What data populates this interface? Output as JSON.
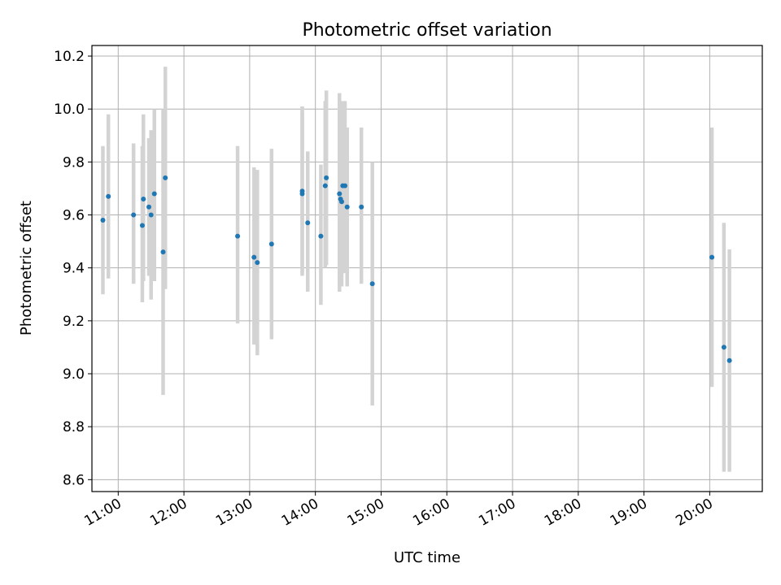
{
  "chart_data": {
    "type": "scatter",
    "title": "Photometric offset variation",
    "xlabel": "UTC time",
    "ylabel": "Photometric offset",
    "x_scale": "time",
    "xlim": [
      "10:36",
      "20:48"
    ],
    "ylim": [
      8.555,
      10.24
    ],
    "x_ticks": [
      "11:00",
      "12:00",
      "13:00",
      "14:00",
      "15:00",
      "16:00",
      "17:00",
      "18:00",
      "19:00",
      "20:00"
    ],
    "y_ticks": [
      "8.6",
      "8.8",
      "9.0",
      "9.2",
      "9.4",
      "9.6",
      "9.8",
      "10.0",
      "10.2"
    ],
    "grid": true,
    "marker_color": "#1f77b4",
    "errorbar_color": "#d3d3d3",
    "points": [
      {
        "x": "10:46",
        "y": 9.58,
        "ylow": 9.3,
        "yhigh": 9.86
      },
      {
        "x": "10:51",
        "y": 9.67,
        "ylow": 9.36,
        "yhigh": 9.98
      },
      {
        "x": "11:14",
        "y": 9.6,
        "ylow": 9.34,
        "yhigh": 9.87
      },
      {
        "x": "11:22",
        "y": 9.56,
        "ylow": 9.27,
        "yhigh": 9.86
      },
      {
        "x": "11:23",
        "y": 9.66,
        "ylow": 9.35,
        "yhigh": 9.98
      },
      {
        "x": "11:28",
        "y": 9.63,
        "ylow": 9.37,
        "yhigh": 9.89
      },
      {
        "x": "11:30",
        "y": 9.6,
        "ylow": 9.28,
        "yhigh": 9.92
      },
      {
        "x": "11:33",
        "y": 9.68,
        "ylow": 9.35,
        "yhigh": 10.0
      },
      {
        "x": "11:41",
        "y": 9.46,
        "ylow": 8.92,
        "yhigh": 10.0
      },
      {
        "x": "11:43",
        "y": 9.74,
        "ylow": 9.32,
        "yhigh": 10.16
      },
      {
        "x": "12:49",
        "y": 9.52,
        "ylow": 9.19,
        "yhigh": 9.86
      },
      {
        "x": "13:04",
        "y": 9.44,
        "ylow": 9.11,
        "yhigh": 9.78
      },
      {
        "x": "13:07",
        "y": 9.42,
        "ylow": 9.07,
        "yhigh": 9.77
      },
      {
        "x": "13:20",
        "y": 9.49,
        "ylow": 9.13,
        "yhigh": 9.85
      },
      {
        "x": "13:48",
        "y": 9.68,
        "ylow": 9.37,
        "yhigh": 9.99
      },
      {
        "x": "13:48",
        "y": 9.69,
        "ylow": 9.38,
        "yhigh": 10.01
      },
      {
        "x": "13:53",
        "y": 9.57,
        "ylow": 9.31,
        "yhigh": 9.84
      },
      {
        "x": "14:05",
        "y": 9.52,
        "ylow": 9.26,
        "yhigh": 9.79
      },
      {
        "x": "14:09",
        "y": 9.71,
        "ylow": 9.4,
        "yhigh": 10.03
      },
      {
        "x": "14:10",
        "y": 9.74,
        "ylow": 9.41,
        "yhigh": 10.07
      },
      {
        "x": "14:22",
        "y": 9.68,
        "ylow": 9.31,
        "yhigh": 10.06
      },
      {
        "x": "14:23",
        "y": 9.66,
        "ylow": 9.35,
        "yhigh": 9.98
      },
      {
        "x": "14:24",
        "y": 9.65,
        "ylow": 9.33,
        "yhigh": 9.97
      },
      {
        "x": "14:25",
        "y": 9.71,
        "ylow": 9.39,
        "yhigh": 10.03
      },
      {
        "x": "14:27",
        "y": 9.71,
        "ylow": 9.38,
        "yhigh": 10.03
      },
      {
        "x": "14:29",
        "y": 9.63,
        "ylow": 9.33,
        "yhigh": 9.93
      },
      {
        "x": "14:42",
        "y": 9.63,
        "ylow": 9.34,
        "yhigh": 9.93
      },
      {
        "x": "14:52",
        "y": 9.34,
        "ylow": 8.88,
        "yhigh": 9.8
      },
      {
        "x": "20:02",
        "y": 9.44,
        "ylow": 8.95,
        "yhigh": 9.93
      },
      {
        "x": "20:13",
        "y": 9.1,
        "ylow": 8.63,
        "yhigh": 9.57
      },
      {
        "x": "20:18",
        "y": 9.05,
        "ylow": 8.63,
        "yhigh": 9.47
      }
    ]
  }
}
